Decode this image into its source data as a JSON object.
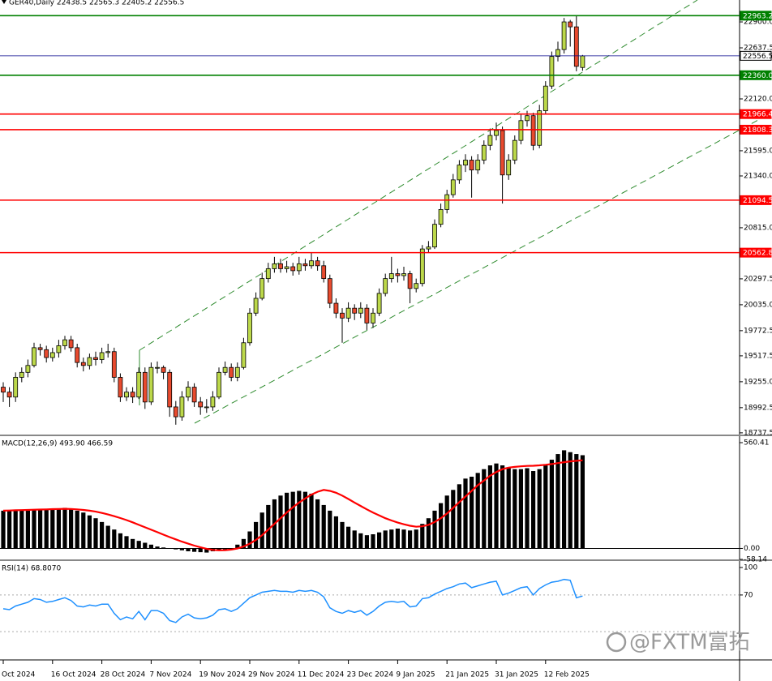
{
  "chart_data": [
    {
      "type": "candlestick",
      "title": "GER40,Daily  22438.5 22565.3 22405.2 22556.5",
      "categories": [
        "Oct 2024",
        null,
        null,
        null,
        null,
        null,
        null,
        null,
        "16 Oct 2024",
        null,
        null,
        null,
        null,
        null,
        null,
        null,
        "28 Oct 2024",
        null,
        null,
        null,
        null,
        null,
        null,
        null,
        "7 Nov 2024",
        null,
        null,
        null,
        null,
        null,
        null,
        null,
        "19 Nov 2024",
        null,
        null,
        null,
        null,
        null,
        null,
        null,
        "29 Nov 2024",
        null,
        null,
        null,
        null,
        null,
        null,
        null,
        "11 Dec 2024",
        null,
        null,
        null,
        null,
        null,
        null,
        null,
        "23 Dec 2024",
        null,
        null,
        null,
        null,
        null,
        null,
        null,
        "9 Jan 2025",
        null,
        null,
        null,
        null,
        null,
        null,
        null,
        "21 Jan 2025",
        null,
        null,
        null,
        null,
        null,
        null,
        null,
        "31 Jan 2025",
        null,
        null,
        null,
        null,
        null,
        null,
        null,
        "12 Feb 2025",
        null,
        null,
        null,
        null,
        null,
        null
      ],
      "open": [
        19200,
        19150,
        19100,
        19300,
        19350,
        19420,
        19600,
        19580,
        19500,
        19550,
        19620,
        19680,
        19600,
        19450,
        19420,
        19500,
        19480,
        19550,
        19560,
        19300,
        19100,
        19150,
        19100,
        19350,
        19050,
        19400,
        19400,
        19350,
        19000,
        18900,
        19100,
        19200,
        19050,
        19000,
        19000,
        19100,
        19350,
        19400,
        19300,
        19400,
        19650,
        19950,
        20100,
        20300,
        20400,
        20450,
        20400,
        20420,
        20380,
        20450,
        20430,
        20480,
        20430,
        20300,
        20050,
        19950,
        19900,
        20000,
        19950,
        20000,
        19850,
        19950,
        20150,
        20300,
        20350,
        20330,
        20350,
        20200,
        20250,
        20600,
        20620,
        20850,
        21000,
        21150,
        21300,
        21450,
        21500,
        21400,
        21500,
        21650,
        21750,
        21800,
        21350,
        21500,
        21700,
        21900,
        21950,
        21650,
        22000,
        22250,
        22550,
        22620,
        22900,
        22850,
        22438.5
      ],
      "high": [
        19250,
        19200,
        19350,
        19400,
        19480,
        19650,
        19640,
        19620,
        19600,
        19680,
        19720,
        19720,
        19640,
        19500,
        19540,
        19560,
        19600,
        19640,
        19600,
        19340,
        19200,
        19200,
        19400,
        19400,
        19450,
        19460,
        19420,
        19380,
        19060,
        19160,
        19260,
        19240,
        19100,
        19080,
        19160,
        19400,
        19460,
        19440,
        19450,
        19700,
        20000,
        20160,
        20360,
        20460,
        20520,
        20500,
        20480,
        20460,
        20520,
        20500,
        20560,
        20520,
        20480,
        20340,
        20100,
        20000,
        20060,
        20040,
        20060,
        20040,
        20000,
        20200,
        20350,
        20520,
        20400,
        20420,
        20380,
        20300,
        20640,
        20680,
        20900,
        21060,
        21200,
        21360,
        21500,
        21560,
        21540,
        21560,
        21700,
        21820,
        21880,
        21840,
        21560,
        21750,
        21960,
        22000,
        21980,
        22060,
        22300,
        22600,
        22700,
        22940,
        22920,
        22963.2,
        22565.3
      ],
      "low": [
        19050,
        19000,
        19050,
        19250,
        19300,
        19400,
        19520,
        19450,
        19460,
        19500,
        19580,
        19560,
        19400,
        19360,
        19380,
        19420,
        19440,
        19500,
        19250,
        19050,
        19060,
        19040,
        19080,
        18980,
        19020,
        19340,
        19280,
        18900,
        18820,
        18860,
        19060,
        19000,
        18920,
        18940,
        18960,
        19080,
        19320,
        19260,
        19260,
        19380,
        19620,
        19920,
        20080,
        20260,
        20360,
        20360,
        20360,
        20330,
        20340,
        20380,
        20400,
        20380,
        20260,
        20000,
        19900,
        19650,
        19860,
        19880,
        19900,
        19780,
        19800,
        19920,
        20120,
        20260,
        20260,
        20280,
        20050,
        20160,
        20220,
        20560,
        20600,
        20820,
        20960,
        21120,
        21260,
        21380,
        21120,
        21360,
        21460,
        21600,
        21700,
        21060,
        21300,
        21460,
        21660,
        21840,
        21600,
        21620,
        21960,
        22220,
        22500,
        22580,
        22650,
        22400,
        22405.2
      ],
      "close": [
        19150,
        19100,
        19300,
        19350,
        19420,
        19600,
        19580,
        19500,
        19550,
        19620,
        19680,
        19600,
        19450,
        19420,
        19500,
        19480,
        19550,
        19560,
        19300,
        19100,
        19150,
        19100,
        19350,
        19050,
        19400,
        19400,
        19350,
        19000,
        18900,
        19100,
        19200,
        19050,
        19000,
        19000,
        19100,
        19350,
        19400,
        19300,
        19400,
        19650,
        19950,
        20100,
        20300,
        20400,
        20450,
        20400,
        20420,
        20380,
        20450,
        20430,
        20480,
        20430,
        20300,
        20050,
        19950,
        19900,
        20000,
        19950,
        20000,
        19850,
        19950,
        20150,
        20300,
        20350,
        20330,
        20350,
        20200,
        20250,
        20600,
        20620,
        20850,
        21000,
        21150,
        21300,
        21450,
        21500,
        21400,
        21500,
        21650,
        21750,
        21800,
        21350,
        21500,
        21700,
        21900,
        21950,
        21650,
        22000,
        22250,
        22550,
        22620,
        22900,
        22850,
        22450,
        22556.5
      ],
      "up_color": "#bcd84a",
      "down_color": "#e84a2e",
      "ylim": [
        18712,
        23122
      ],
      "yticks": [
        {
          "value": 22900,
          "label": "22900.0"
        },
        22637.5,
        {
          "value": 22120,
          "label": "22120.0"
        },
        {
          "value": 21595,
          "label": "21595.0"
        },
        {
          "value": 21340,
          "label": "21340.0"
        },
        {
          "value": 20815,
          "label": "20815.0"
        },
        20297.5,
        {
          "value": 20035,
          "label": "20035.0"
        },
        19772.5,
        19517.5,
        {
          "value": 19255,
          "label": "19255.0"
        },
        18992.5,
        18737.5
      ],
      "levels": [
        {
          "value": 22963.2,
          "label": "22963.2",
          "color": "#008000"
        },
        {
          "value": 22556.5,
          "label": "22556.5",
          "color": "#00008b"
        },
        {
          "value": 22360,
          "label": "22360.0",
          "color": "#008000"
        },
        {
          "value": 21966.4,
          "label": "21966.4",
          "color": "#ff0000"
        },
        {
          "value": 21808.3,
          "label": "21808.3",
          "color": "#ff0000"
        },
        {
          "value": 21094.5,
          "label": "21094.5",
          "color": "#ff0000"
        },
        {
          "value": 20562.8,
          "label": "20562.8",
          "color": "#ff0000"
        }
      ]
    },
    {
      "type": "bar",
      "title": "MACD(12,26,9) 493.90 466.59",
      "values": [
        200,
        202,
        204,
        205,
        206,
        208,
        209,
        210,
        211,
        212,
        215,
        210,
        200,
        190,
        175,
        160,
        140,
        120,
        100,
        80,
        65,
        50,
        40,
        30,
        20,
        10,
        5,
        0,
        -5,
        -10,
        -15,
        -18,
        -20,
        -22,
        -15,
        -10,
        -5,
        0,
        20,
        50,
        90,
        140,
        190,
        230,
        260,
        280,
        295,
        300,
        305,
        300,
        290,
        260,
        230,
        200,
        170,
        140,
        115,
        95,
        80,
        70,
        75,
        85,
        95,
        100,
        105,
        100,
        95,
        100,
        130,
        160,
        200,
        240,
        280,
        310,
        340,
        370,
        380,
        400,
        420,
        440,
        450,
        440,
        430,
        420,
        420,
        425,
        410,
        420,
        440,
        470,
        500,
        520,
        510,
        500,
        493.9
      ],
      "color": "#000000",
      "signal": [
        200,
        201,
        202,
        203,
        204,
        205,
        206,
        207,
        208,
        209,
        210,
        209,
        207,
        204,
        200,
        195,
        188,
        180,
        171,
        161,
        150,
        138,
        125,
        112,
        99,
        86,
        73,
        60,
        48,
        36,
        25,
        15,
        6,
        -2,
        -8,
        -10,
        -9,
        -6,
        0,
        10,
        25,
        45,
        70,
        100,
        130,
        160,
        190,
        218,
        243,
        265,
        285,
        300,
        310,
        305,
        295,
        280,
        262,
        243,
        225,
        207,
        190,
        175,
        160,
        148,
        137,
        128,
        120,
        115,
        117,
        125,
        140,
        160,
        185,
        215,
        245,
        275,
        305,
        335,
        360,
        385,
        405,
        420,
        428,
        432,
        435,
        437,
        438,
        440,
        443,
        447,
        452,
        457,
        461,
        464,
        466.59
      ],
      "signal_color": "#ff0000",
      "ylim": [
        -58.14,
        560.41
      ],
      "yticks": [
        560.41,
        {
          "value": 0,
          "label": "0.00"
        },
        -58.14
      ]
    },
    {
      "type": "line",
      "title": "RSI(14) 68.8070",
      "values": [
        55,
        54,
        58,
        60,
        62,
        66,
        65,
        62,
        63,
        65,
        67,
        64,
        58,
        57,
        59,
        58,
        60,
        60,
        50,
        43,
        46,
        44,
        52,
        43,
        53,
        53,
        50,
        42,
        40,
        46,
        49,
        45,
        44,
        45,
        48,
        54,
        55,
        52,
        55,
        61,
        67,
        70,
        73,
        74,
        75,
        74,
        74,
        73,
        75,
        74,
        75,
        73,
        68,
        56,
        52,
        50,
        53,
        51,
        53,
        48,
        52,
        58,
        62,
        63,
        62,
        63,
        57,
        58,
        66,
        67,
        71,
        74,
        77,
        79,
        82,
        83,
        78,
        80,
        82,
        84,
        85,
        70,
        72,
        75,
        78,
        79,
        70,
        77,
        81,
        84,
        85,
        87,
        86,
        67,
        68.807
      ],
      "color": "#1e90ff",
      "ylim": [
        0,
        100
      ],
      "yticks": [
        100,
        70
      ],
      "levels": [
        70,
        30
      ]
    }
  ],
  "watermark": "@FXTM富拓"
}
